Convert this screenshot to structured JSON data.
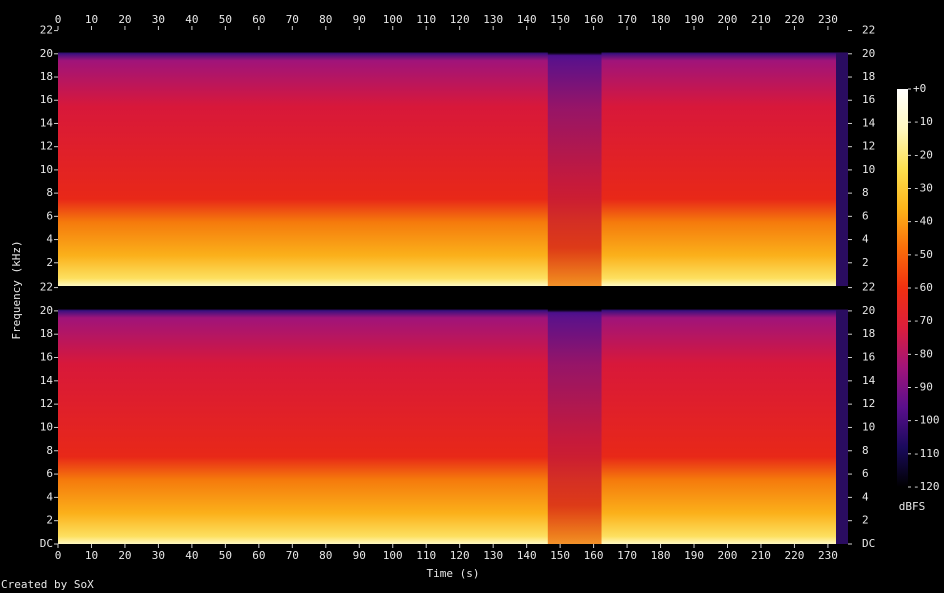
{
  "chart_data": {
    "type": "spectrogram",
    "x_label": "Time (s)",
    "y_label": "Frequency (kHz)",
    "colorbar_label": "dBFS",
    "footer": "Created by SoX",
    "xlim": [
      0,
      236
    ],
    "xticks": [
      0,
      10,
      20,
      30,
      40,
      50,
      60,
      70,
      80,
      90,
      100,
      110,
      120,
      130,
      140,
      150,
      160,
      170,
      180,
      190,
      200,
      210,
      220,
      230
    ],
    "channels": [
      {
        "ylim": [
          0,
          22.05
        ],
        "yticks": [
          2,
          4,
          6,
          8,
          10,
          12,
          14,
          16,
          18,
          20,
          22
        ]
      },
      {
        "ylim": [
          0,
          22.05
        ],
        "yticks": [
          {
            "value": 0,
            "label": "DC"
          },
          2,
          4,
          6,
          8,
          10,
          12,
          14,
          16,
          18,
          20,
          22
        ]
      }
    ],
    "clim": [
      -120,
      0
    ],
    "cticks": [
      {
        "value": 0,
        "label": "+0"
      },
      -10,
      -20,
      -30,
      -40,
      -50,
      -60,
      -70,
      -80,
      -90,
      -100,
      -110,
      -120
    ],
    "colormap": [
      "#000000",
      "#1a0a5c",
      "#5a0f8c",
      "#a0147a",
      "#dc1e3c",
      "#f03010",
      "#fa6e0a",
      "#fcb41a",
      "#fde050",
      "#fff8c0",
      "#ffffff"
    ]
  }
}
